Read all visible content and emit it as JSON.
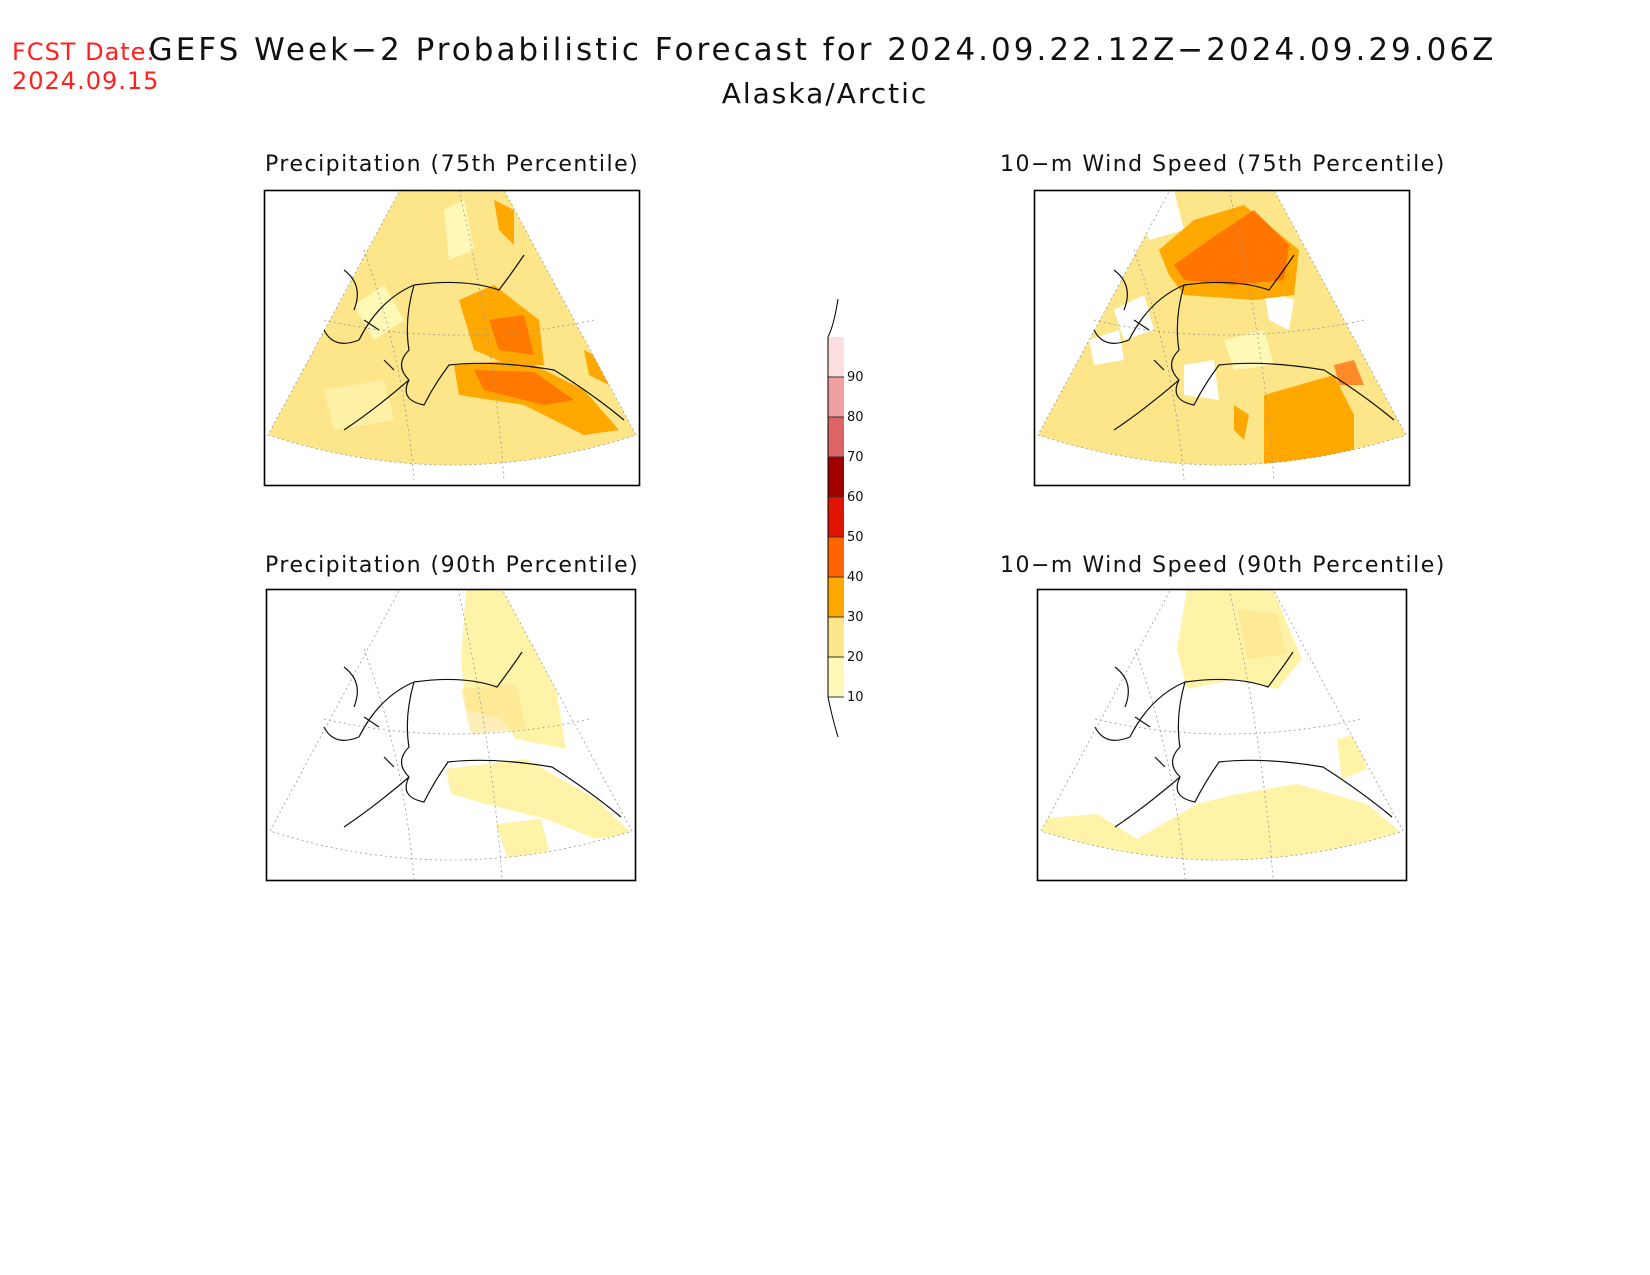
{
  "header": {
    "fcst_label": "FCST Date:",
    "fcst_date": "2024.09.15",
    "title": "GEFS Week−2 Probabilistic Forecast for 2024.09.22.12Z−2024.09.29.06Z",
    "region": "Alaska/Arctic"
  },
  "panels": [
    {
      "title": "Precipitation (75th Percentile)"
    },
    {
      "title": "10−m Wind Speed (75th Percentile)"
    },
    {
      "title": "Precipitation (90th Percentile)"
    },
    {
      "title": "10−m Wind Speed (90th Percentile)"
    }
  ],
  "legend": {
    "levels": [
      "10",
      "20",
      "30",
      "40",
      "50",
      "60",
      "70",
      "80",
      "90"
    ],
    "colors": [
      "#fff9b8",
      "#fde58a",
      "#ffa800",
      "#ff6400",
      "#e01400",
      "#a00000",
      "#dc6464",
      "#f0a0a0",
      "#fce0e0"
    ]
  }
}
